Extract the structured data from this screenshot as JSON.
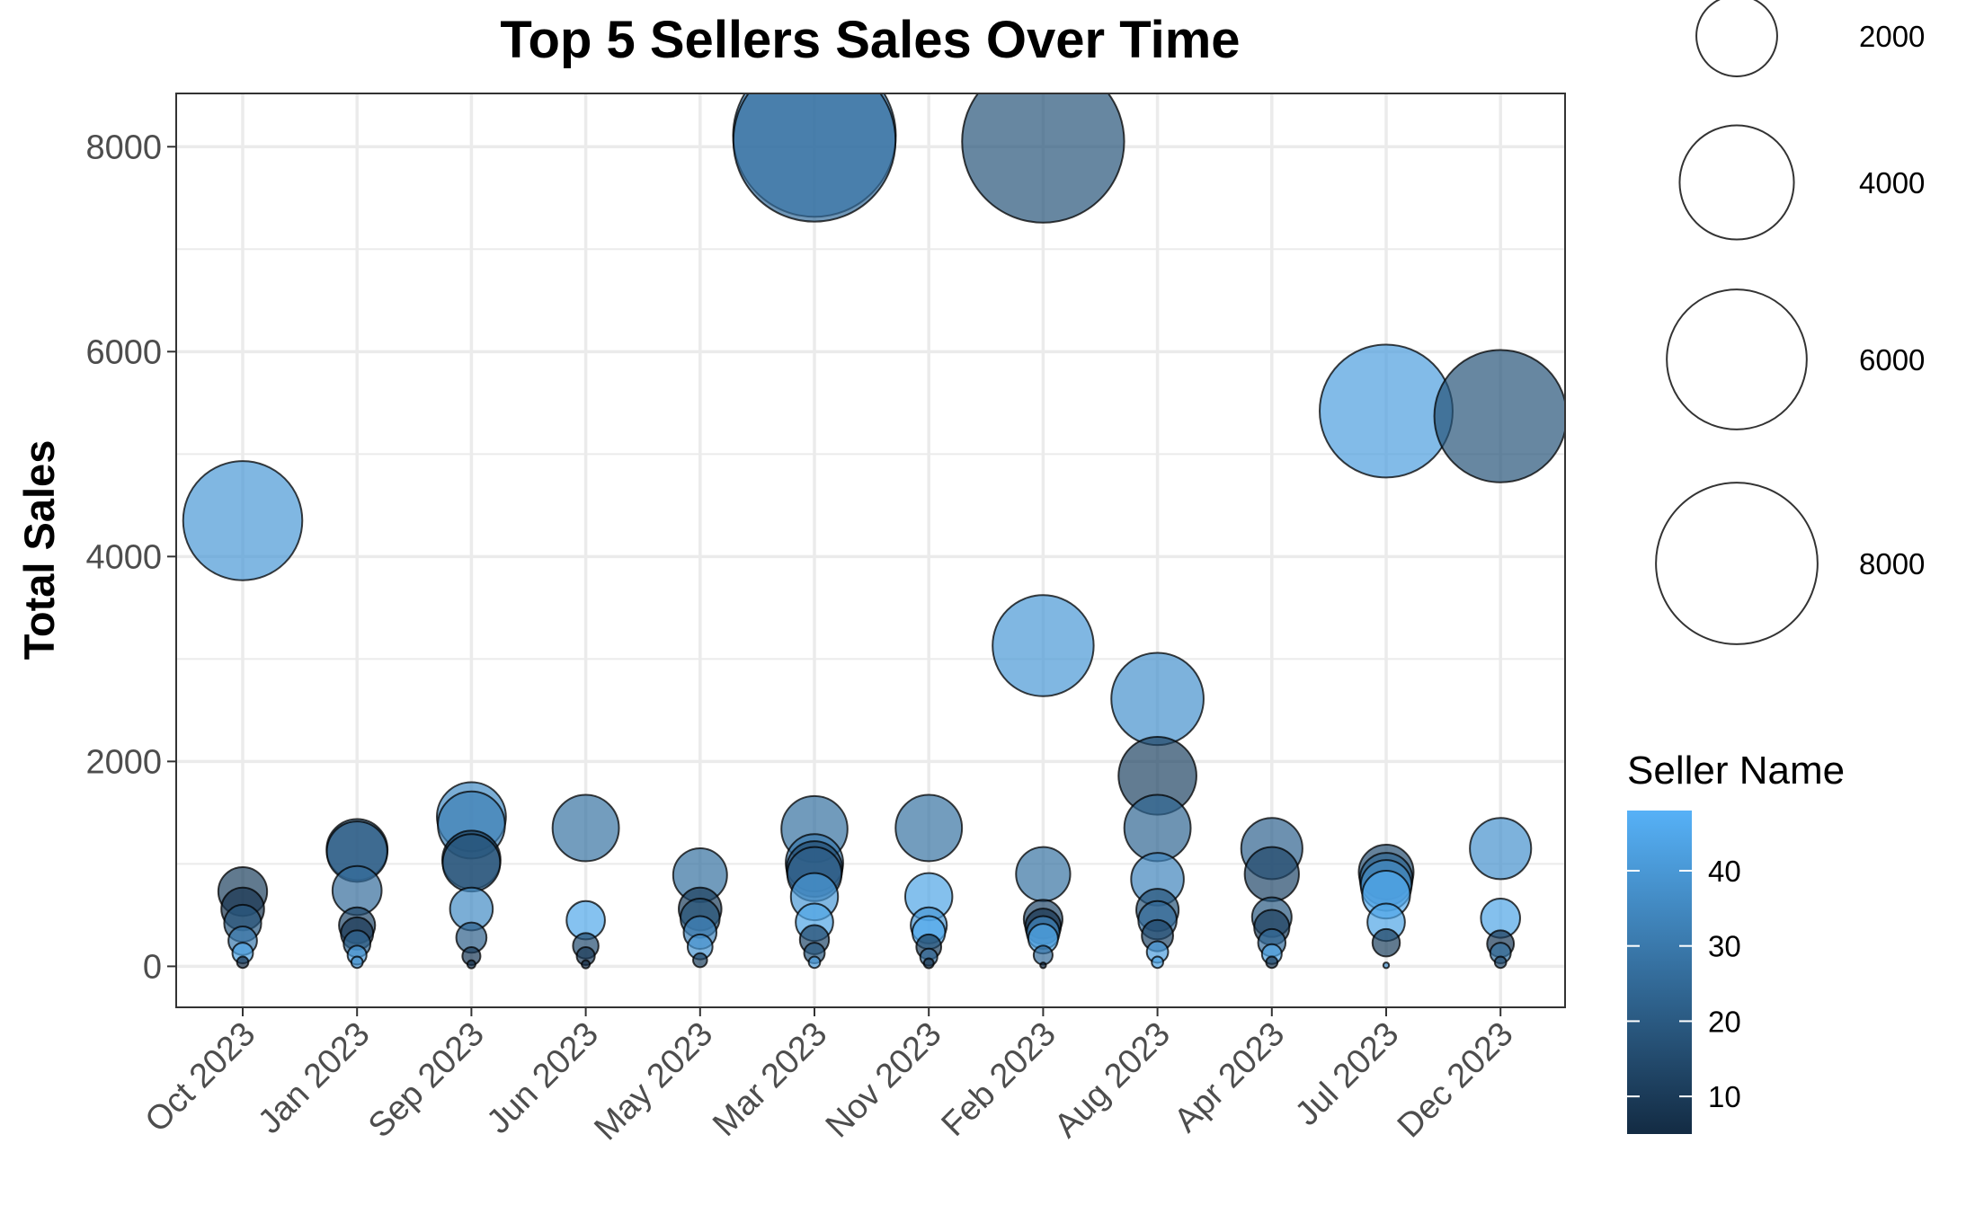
{
  "chart_data": {
    "type": "scatter",
    "title": "Top 5 Sellers Sales Over Time",
    "xlabel": "",
    "ylabel": "Total Sales",
    "categories": [
      "Oct 2023",
      "Jan 2023",
      "Sep 2023",
      "Jun 2023",
      "May 2023",
      "Mar 2023",
      "Nov 2023",
      "Feb 2023",
      "Aug 2023",
      "Apr 2023",
      "Jul 2023",
      "Dec 2023"
    ],
    "yticks": [
      0,
      2000,
      4000,
      6000,
      8000
    ],
    "ylim": [
      -400,
      8520
    ],
    "grid": true,
    "size_legend": {
      "title": "",
      "values": [
        2000,
        4000,
        6000,
        8000
      ]
    },
    "color_legend": {
      "title": "Seller Name",
      "ticks": [
        10,
        20,
        30,
        40
      ],
      "range": [
        5,
        48
      ],
      "low_color": "#132b43",
      "high_color": "#56b1f7"
    },
    "points": [
      {
        "x": "Oct 2023",
        "y": 4350,
        "size": 4350,
        "seller": 40
      },
      {
        "x": "Oct 2023",
        "y": 730,
        "size": 730,
        "seller": 12
      },
      {
        "x": "Oct 2023",
        "y": 560,
        "size": 560,
        "seller": 8
      },
      {
        "x": "Oct 2023",
        "y": 420,
        "size": 420,
        "seller": 20
      },
      {
        "x": "Oct 2023",
        "y": 250,
        "size": 250,
        "seller": 30
      },
      {
        "x": "Oct 2023",
        "y": 130,
        "size": 130,
        "seller": 44
      },
      {
        "x": "Oct 2023",
        "y": 40,
        "size": 40,
        "seller": 6
      },
      {
        "x": "Jan 2023",
        "y": 1140,
        "size": 1140,
        "seller": 18
      },
      {
        "x": "Jan 2023",
        "y": 1120,
        "size": 1120,
        "seller": 22
      },
      {
        "x": "Jan 2023",
        "y": 740,
        "size": 740,
        "seller": 26
      },
      {
        "x": "Jan 2023",
        "y": 400,
        "size": 400,
        "seller": 14
      },
      {
        "x": "Jan 2023",
        "y": 320,
        "size": 320,
        "seller": 9
      },
      {
        "x": "Jan 2023",
        "y": 220,
        "size": 220,
        "seller": 24
      },
      {
        "x": "Jan 2023",
        "y": 110,
        "size": 110,
        "seller": 42
      },
      {
        "x": "Jan 2023",
        "y": 40,
        "size": 40,
        "seller": 38
      },
      {
        "x": "Sep 2023",
        "y": 1460,
        "size": 1460,
        "seller": 36
      },
      {
        "x": "Sep 2023",
        "y": 1380,
        "size": 1380,
        "seller": 32
      },
      {
        "x": "Sep 2023",
        "y": 1040,
        "size": 1040,
        "seller": 12
      },
      {
        "x": "Sep 2023",
        "y": 1010,
        "size": 1010,
        "seller": 20
      },
      {
        "x": "Sep 2023",
        "y": 560,
        "size": 560,
        "seller": 36
      },
      {
        "x": "Sep 2023",
        "y": 280,
        "size": 280,
        "seller": 22
      },
      {
        "x": "Sep 2023",
        "y": 100,
        "size": 100,
        "seller": 10
      },
      {
        "x": "Sep 2023",
        "y": 20,
        "size": 20,
        "seller": 7
      },
      {
        "x": "Jun 2023",
        "y": 1350,
        "size": 1350,
        "seller": 28
      },
      {
        "x": "Jun 2023",
        "y": 450,
        "size": 450,
        "seller": 45
      },
      {
        "x": "Jun 2023",
        "y": 200,
        "size": 200,
        "seller": 16
      },
      {
        "x": "Jun 2023",
        "y": 100,
        "size": 100,
        "seller": 10
      },
      {
        "x": "Jun 2023",
        "y": 20,
        "size": 20,
        "seller": 6
      },
      {
        "x": "May 2023",
        "y": 890,
        "size": 890,
        "seller": 27
      },
      {
        "x": "May 2023",
        "y": 560,
        "size": 560,
        "seller": 11
      },
      {
        "x": "May 2023",
        "y": 470,
        "size": 470,
        "seller": 18
      },
      {
        "x": "May 2023",
        "y": 330,
        "size": 330,
        "seller": 34
      },
      {
        "x": "May 2023",
        "y": 190,
        "size": 190,
        "seller": 39
      },
      {
        "x": "May 2023",
        "y": 60,
        "size": 60,
        "seller": 12
      },
      {
        "x": "Mar 2023",
        "y": 8060,
        "size": 8060,
        "seller": 26
      },
      {
        "x": "Mar 2023",
        "y": 8110,
        "size": 8110,
        "seller": 35
      },
      {
        "x": "Mar 2023",
        "y": 1340,
        "size": 1340,
        "seller": 27
      },
      {
        "x": "Mar 2023",
        "y": 1010,
        "size": 1010,
        "seller": 30
      },
      {
        "x": "Mar 2023",
        "y": 950,
        "size": 950,
        "seller": 16
      },
      {
        "x": "Mar 2023",
        "y": 900,
        "size": 900,
        "seller": 22
      },
      {
        "x": "Mar 2023",
        "y": 680,
        "size": 680,
        "seller": 40
      },
      {
        "x": "Mar 2023",
        "y": 430,
        "size": 430,
        "seller": 44
      },
      {
        "x": "Mar 2023",
        "y": 260,
        "size": 260,
        "seller": 14
      },
      {
        "x": "Mar 2023",
        "y": 130,
        "size": 130,
        "seller": 20
      },
      {
        "x": "Mar 2023",
        "y": 40,
        "size": 40,
        "seller": 42
      },
      {
        "x": "Nov 2023",
        "y": 1350,
        "size": 1350,
        "seller": 28
      },
      {
        "x": "Nov 2023",
        "y": 680,
        "size": 680,
        "seller": 44
      },
      {
        "x": "Nov 2023",
        "y": 400,
        "size": 400,
        "seller": 40
      },
      {
        "x": "Nov 2023",
        "y": 330,
        "size": 330,
        "seller": 46
      },
      {
        "x": "Nov 2023",
        "y": 190,
        "size": 190,
        "seller": 12
      },
      {
        "x": "Nov 2023",
        "y": 90,
        "size": 90,
        "seller": 26
      },
      {
        "x": "Nov 2023",
        "y": 30,
        "size": 30,
        "seller": 8
      },
      {
        "x": "Feb 2023",
        "y": 8050,
        "size": 8050,
        "seller": 18
      },
      {
        "x": "Feb 2023",
        "y": 3130,
        "size": 3130,
        "seller": 40
      },
      {
        "x": "Feb 2023",
        "y": 900,
        "size": 900,
        "seller": 28
      },
      {
        "x": "Feb 2023",
        "y": 460,
        "size": 460,
        "seller": 14
      },
      {
        "x": "Feb 2023",
        "y": 390,
        "size": 390,
        "seller": 8
      },
      {
        "x": "Feb 2023",
        "y": 330,
        "size": 330,
        "seller": 34
      },
      {
        "x": "Feb 2023",
        "y": 270,
        "size": 270,
        "seller": 44
      },
      {
        "x": "Feb 2023",
        "y": 110,
        "size": 110,
        "seller": 26
      },
      {
        "x": "Feb 2023",
        "y": 10,
        "size": 10,
        "seller": 6
      },
      {
        "x": "Aug 2023",
        "y": 2610,
        "size": 2610,
        "seller": 38
      },
      {
        "x": "Aug 2023",
        "y": 1860,
        "size": 1860,
        "seller": 13
      },
      {
        "x": "Aug 2023",
        "y": 1350,
        "size": 1350,
        "seller": 24
      },
      {
        "x": "Aug 2023",
        "y": 850,
        "size": 850,
        "seller": 34
      },
      {
        "x": "Aug 2023",
        "y": 550,
        "size": 550,
        "seller": 18
      },
      {
        "x": "Aug 2023",
        "y": 450,
        "size": 450,
        "seller": 26
      },
      {
        "x": "Aug 2023",
        "y": 300,
        "size": 300,
        "seller": 14
      },
      {
        "x": "Aug 2023",
        "y": 140,
        "size": 140,
        "seller": 42
      },
      {
        "x": "Aug 2023",
        "y": 40,
        "size": 40,
        "seller": 44
      },
      {
        "x": "Apr 2023",
        "y": 1150,
        "size": 1150,
        "seller": 23
      },
      {
        "x": "Apr 2023",
        "y": 900,
        "size": 900,
        "seller": 14
      },
      {
        "x": "Apr 2023",
        "y": 480,
        "size": 480,
        "seller": 20
      },
      {
        "x": "Apr 2023",
        "y": 380,
        "size": 380,
        "seller": 11
      },
      {
        "x": "Apr 2023",
        "y": 230,
        "size": 230,
        "seller": 26
      },
      {
        "x": "Apr 2023",
        "y": 120,
        "size": 120,
        "seller": 44
      },
      {
        "x": "Apr 2023",
        "y": 40,
        "size": 40,
        "seller": 8
      },
      {
        "x": "Jul 2023",
        "y": 5420,
        "size": 5420,
        "seller": 42
      },
      {
        "x": "Jul 2023",
        "y": 920,
        "size": 920,
        "seller": 16
      },
      {
        "x": "Jul 2023",
        "y": 850,
        "size": 850,
        "seller": 24
      },
      {
        "x": "Jul 2023",
        "y": 790,
        "size": 790,
        "seller": 36
      },
      {
        "x": "Jul 2023",
        "y": 700,
        "size": 700,
        "seller": 46
      },
      {
        "x": "Jul 2023",
        "y": 430,
        "size": 430,
        "seller": 44
      },
      {
        "x": "Jul 2023",
        "y": 230,
        "size": 230,
        "seller": 12
      },
      {
        "x": "Jul 2023",
        "y": 10,
        "size": 10,
        "seller": 38
      },
      {
        "x": "Dec 2023",
        "y": 5370,
        "size": 5370,
        "seller": 18
      },
      {
        "x": "Dec 2023",
        "y": 1150,
        "size": 1150,
        "seller": 38
      },
      {
        "x": "Dec 2023",
        "y": 470,
        "size": 470,
        "seller": 44
      },
      {
        "x": "Dec 2023",
        "y": 220,
        "size": 220,
        "seller": 10
      },
      {
        "x": "Dec 2023",
        "y": 130,
        "size": 130,
        "seller": 28
      },
      {
        "x": "Dec 2023",
        "y": 40,
        "size": 40,
        "seller": 14
      }
    ]
  }
}
